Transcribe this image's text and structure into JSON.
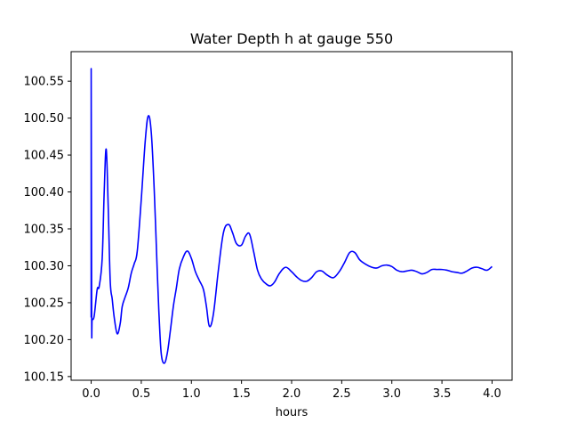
{
  "chart_data": {
    "type": "line",
    "title": "Water Depth h at gauge 550",
    "xlabel": "hours",
    "ylabel": "",
    "xlim": [
      -0.2,
      4.2
    ],
    "ylim": [
      100.145,
      100.59
    ],
    "grid": false,
    "x_ticks": [
      0.0,
      0.5,
      1.0,
      1.5,
      2.0,
      2.5,
      3.0,
      3.5,
      4.0
    ],
    "x_tick_labels": [
      "0.0",
      "0.5",
      "1.0",
      "1.5",
      "2.0",
      "2.5",
      "3.0",
      "3.5",
      "4.0"
    ],
    "y_ticks": [
      100.15,
      100.2,
      100.25,
      100.3,
      100.35,
      100.4,
      100.45,
      100.5,
      100.55
    ],
    "y_tick_labels": [
      "100.15",
      "100.20",
      "100.25",
      "100.30",
      "100.35",
      "100.40",
      "100.45",
      "100.50",
      "100.55"
    ],
    "color": "#0000ff",
    "series": [
      {
        "x": [
          0.0,
          0.0,
          0.005,
          0.01,
          0.03,
          0.06,
          0.08,
          0.11,
          0.13,
          0.15,
          0.17,
          0.19,
          0.21,
          0.23,
          0.26,
          0.29,
          0.31,
          0.34,
          0.37,
          0.4,
          0.43,
          0.46,
          0.5,
          0.54,
          0.57,
          0.6,
          0.63,
          0.66,
          0.68,
          0.7,
          0.73,
          0.76,
          0.79,
          0.82,
          0.85,
          0.88,
          0.92,
          0.96,
          1.0,
          1.04,
          1.08,
          1.12,
          1.15,
          1.18,
          1.22,
          1.27,
          1.32,
          1.37,
          1.41,
          1.45,
          1.5,
          1.54,
          1.58,
          1.62,
          1.66,
          1.7,
          1.75,
          1.79,
          1.83,
          1.88,
          1.94,
          2.0,
          2.05,
          2.1,
          2.15,
          2.2,
          2.25,
          2.3,
          2.36,
          2.42,
          2.48,
          2.53,
          2.58,
          2.63,
          2.68,
          2.74,
          2.8,
          2.85,
          2.9,
          2.95,
          3.0,
          3.05,
          3.1,
          3.15,
          3.2,
          3.25,
          3.3,
          3.35,
          3.4,
          3.45,
          3.5,
          3.55,
          3.6,
          3.65,
          3.7,
          3.75,
          3.8,
          3.85,
          3.9,
          3.95,
          4.0
        ],
        "y": [
          100.23,
          100.567,
          100.23,
          100.228,
          100.232,
          100.268,
          100.272,
          100.31,
          100.4,
          100.458,
          100.38,
          100.28,
          100.255,
          100.23,
          100.208,
          100.222,
          100.245,
          100.258,
          100.27,
          100.29,
          100.303,
          100.32,
          100.39,
          100.47,
          100.503,
          100.48,
          100.4,
          100.29,
          100.225,
          100.18,
          100.168,
          100.182,
          100.212,
          100.245,
          100.27,
          100.296,
          100.312,
          100.32,
          100.31,
          100.292,
          100.28,
          100.268,
          100.245,
          100.218,
          100.235,
          100.295,
          100.345,
          100.356,
          100.345,
          100.33,
          100.328,
          100.34,
          100.343,
          100.32,
          100.294,
          100.282,
          100.275,
          100.273,
          100.278,
          100.29,
          100.298,
          100.292,
          100.285,
          100.28,
          100.279,
          100.284,
          100.292,
          100.293,
          100.287,
          100.284,
          100.293,
          100.305,
          100.318,
          100.318,
          100.308,
          100.302,
          100.298,
          100.297,
          100.3,
          100.301,
          100.299,
          100.294,
          100.292,
          100.293,
          100.294,
          100.292,
          100.289,
          100.291,
          100.295,
          100.295,
          100.295,
          100.294,
          100.292,
          100.291,
          100.29,
          100.293,
          100.297,
          100.298,
          100.296,
          100.294,
          100.299
        ]
      }
    ]
  }
}
